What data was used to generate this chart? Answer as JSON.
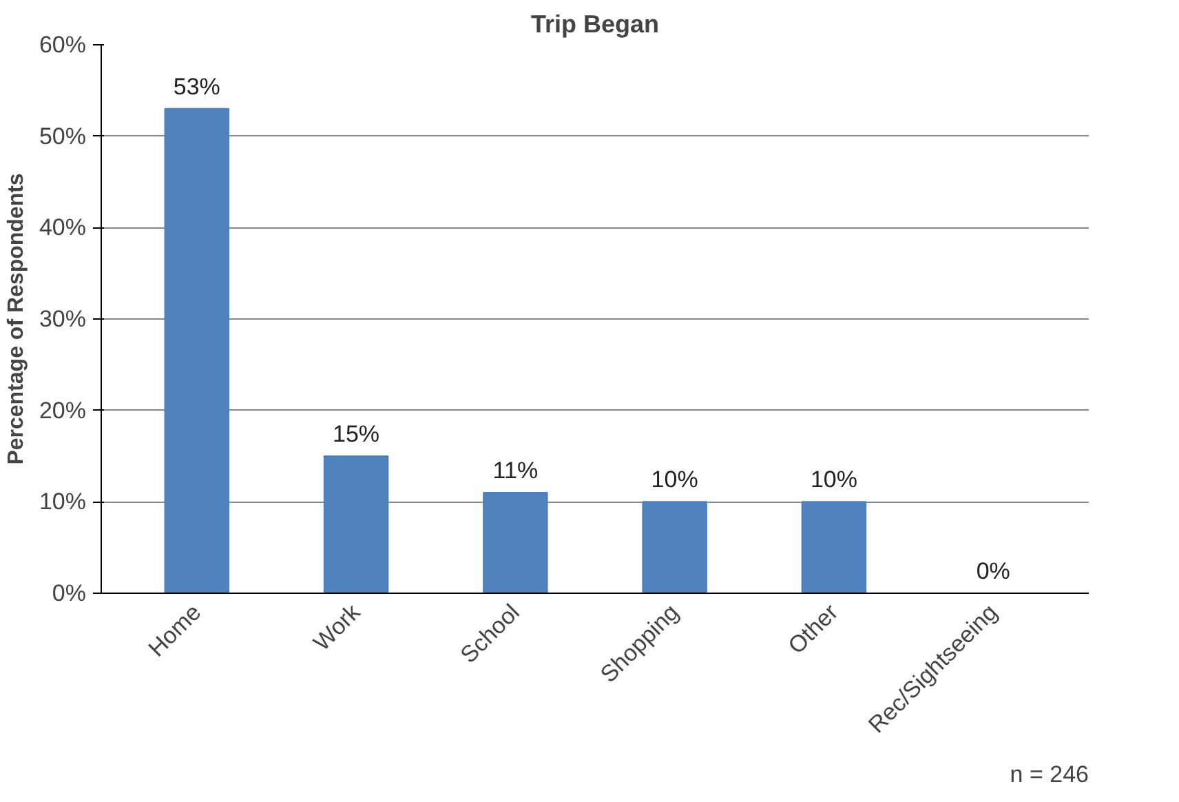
{
  "chart_data": {
    "type": "bar",
    "title": "Trip Began",
    "ylabel": "Percentage of Respondents",
    "categories": [
      "Home",
      "Work",
      "School",
      "Shopping",
      "Other",
      "Rec/Sightseeing"
    ],
    "values": [
      53,
      15,
      11,
      10,
      10,
      0
    ],
    "value_labels": [
      "53%",
      "15%",
      "11%",
      "10%",
      "10%",
      "0%"
    ],
    "color": "#4f81bd",
    "ylim": [
      0,
      60
    ],
    "yticks": [
      {
        "value": 0,
        "label": "0%"
      },
      {
        "value": 10,
        "label": "10%"
      },
      {
        "value": 20,
        "label": "20%"
      },
      {
        "value": 30,
        "label": "30%"
      },
      {
        "value": 40,
        "label": "40%"
      },
      {
        "value": 50,
        "label": "50%"
      },
      {
        "value": 60,
        "label": "60%"
      }
    ],
    "grid": "y",
    "annotations": [
      "n = 246"
    ]
  }
}
